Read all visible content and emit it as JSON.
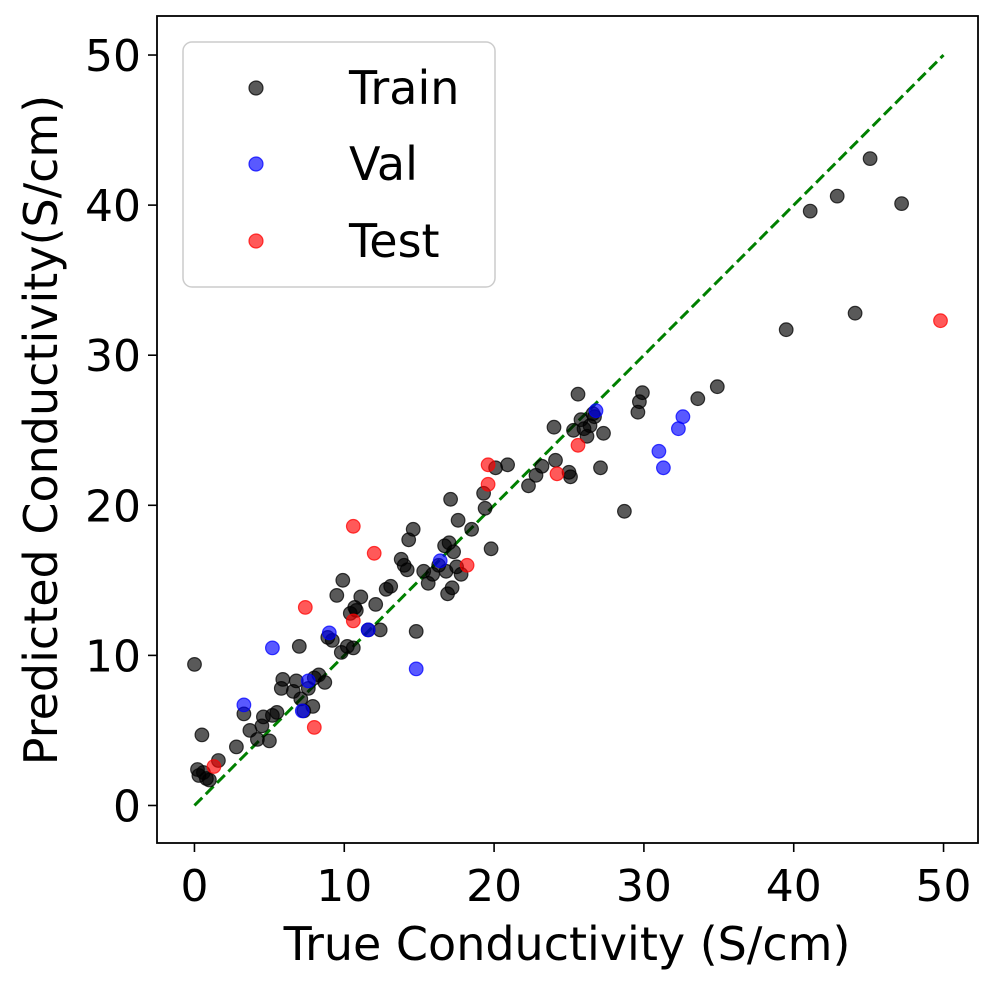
{
  "chart_data": {
    "type": "scatter",
    "title": "",
    "xlabel": "True Conductivity (S/cm)",
    "ylabel": "Predicted Conductivity(S/cm)",
    "xlim": [
      -2.5,
      52.3
    ],
    "ylim": [
      -2.5,
      52.6
    ],
    "xticks": [
      0,
      10,
      20,
      30,
      40,
      50
    ],
    "yticks": [
      0,
      10,
      20,
      30,
      40,
      50
    ],
    "grid": false,
    "legend_position": "top-left",
    "reference_line": {
      "name": "y = x",
      "from": [
        0,
        0
      ],
      "to": [
        50,
        50
      ],
      "color": "#008000",
      "style": "dashed"
    },
    "series": [
      {
        "name": "Train",
        "color": "#000000",
        "points": [
          [
            0.0,
            9.4
          ],
          [
            0.2,
            2.4
          ],
          [
            0.3,
            2.0
          ],
          [
            0.5,
            4.7
          ],
          [
            0.6,
            2.2
          ],
          [
            0.8,
            1.8
          ],
          [
            1.0,
            1.7
          ],
          [
            1.6,
            3.0
          ],
          [
            2.8,
            3.9
          ],
          [
            3.3,
            6.1
          ],
          [
            3.7,
            5.0
          ],
          [
            4.2,
            4.4
          ],
          [
            4.5,
            5.3
          ],
          [
            4.6,
            5.9
          ],
          [
            5.0,
            4.3
          ],
          [
            5.2,
            6.0
          ],
          [
            5.5,
            6.2
          ],
          [
            5.8,
            7.8
          ],
          [
            5.9,
            8.4
          ],
          [
            6.6,
            7.6
          ],
          [
            6.8,
            8.3
          ],
          [
            7.0,
            10.6
          ],
          [
            7.1,
            7.1
          ],
          [
            7.3,
            6.3
          ],
          [
            7.6,
            7.8
          ],
          [
            7.9,
            6.6
          ],
          [
            8.0,
            8.5
          ],
          [
            8.3,
            8.7
          ],
          [
            8.7,
            8.2
          ],
          [
            8.9,
            11.2
          ],
          [
            9.2,
            11.0
          ],
          [
            9.5,
            14.0
          ],
          [
            9.8,
            10.2
          ],
          [
            9.9,
            15.0
          ],
          [
            10.2,
            10.6
          ],
          [
            10.4,
            12.8
          ],
          [
            10.6,
            10.5
          ],
          [
            10.7,
            13.2
          ],
          [
            10.8,
            13.0
          ],
          [
            11.1,
            13.9
          ],
          [
            11.6,
            11.7
          ],
          [
            12.1,
            13.4
          ],
          [
            12.4,
            11.7
          ],
          [
            12.8,
            14.4
          ],
          [
            13.1,
            14.6
          ],
          [
            13.8,
            16.4
          ],
          [
            14.0,
            16.0
          ],
          [
            14.2,
            15.7
          ],
          [
            14.3,
            17.7
          ],
          [
            14.6,
            18.4
          ],
          [
            14.8,
            11.6
          ],
          [
            15.3,
            15.6
          ],
          [
            15.6,
            14.8
          ],
          [
            15.9,
            15.4
          ],
          [
            16.3,
            16.0
          ],
          [
            16.7,
            17.3
          ],
          [
            16.8,
            15.6
          ],
          [
            16.9,
            14.1
          ],
          [
            17.0,
            17.5
          ],
          [
            17.2,
            14.5
          ],
          [
            17.3,
            16.9
          ],
          [
            17.5,
            15.9
          ],
          [
            17.1,
            20.4
          ],
          [
            17.6,
            19.0
          ],
          [
            17.8,
            15.4
          ],
          [
            18.5,
            18.4
          ],
          [
            19.3,
            20.8
          ],
          [
            19.4,
            19.8
          ],
          [
            19.8,
            17.1
          ],
          [
            20.1,
            22.5
          ],
          [
            20.9,
            22.7
          ],
          [
            22.3,
            21.3
          ],
          [
            22.8,
            22.0
          ],
          [
            23.2,
            22.6
          ],
          [
            24.0,
            25.2
          ],
          [
            24.1,
            23.0
          ],
          [
            25.0,
            22.2
          ],
          [
            25.1,
            21.9
          ],
          [
            25.3,
            25.0
          ],
          [
            25.6,
            27.4
          ],
          [
            25.8,
            25.7
          ],
          [
            26.0,
            25.1
          ],
          [
            26.2,
            24.6
          ],
          [
            26.4,
            25.3
          ],
          [
            26.6,
            26.1
          ],
          [
            26.7,
            25.9
          ],
          [
            27.1,
            22.5
          ],
          [
            27.3,
            24.8
          ],
          [
            28.7,
            19.6
          ],
          [
            29.6,
            26.2
          ],
          [
            29.7,
            26.9
          ],
          [
            29.9,
            27.5
          ],
          [
            33.6,
            27.1
          ],
          [
            34.9,
            27.9
          ],
          [
            39.5,
            31.7
          ],
          [
            41.1,
            39.6
          ],
          [
            42.9,
            40.6
          ],
          [
            44.1,
            32.8
          ],
          [
            45.1,
            43.1
          ],
          [
            47.2,
            40.1
          ]
        ]
      },
      {
        "name": "Val",
        "color": "#0000ff",
        "points": [
          [
            3.3,
            6.7
          ],
          [
            5.2,
            10.5
          ],
          [
            7.2,
            6.3
          ],
          [
            7.6,
            8.3
          ],
          [
            9.0,
            11.5
          ],
          [
            11.6,
            11.7
          ],
          [
            14.8,
            9.1
          ],
          [
            16.4,
            16.3
          ],
          [
            26.8,
            26.3
          ],
          [
            31.0,
            23.6
          ],
          [
            31.3,
            22.5
          ],
          [
            32.3,
            25.1
          ],
          [
            32.6,
            25.9
          ]
        ]
      },
      {
        "name": "Test",
        "color": "#ff0000",
        "points": [
          [
            1.3,
            2.6
          ],
          [
            7.4,
            13.2
          ],
          [
            8.0,
            5.2
          ],
          [
            10.6,
            12.3
          ],
          [
            10.6,
            18.6
          ],
          [
            12.0,
            16.8
          ],
          [
            18.2,
            16.0
          ],
          [
            19.6,
            22.7
          ],
          [
            19.6,
            21.4
          ],
          [
            24.2,
            22.1
          ],
          [
            25.6,
            24.0
          ],
          [
            49.8,
            32.3
          ]
        ]
      }
    ]
  }
}
